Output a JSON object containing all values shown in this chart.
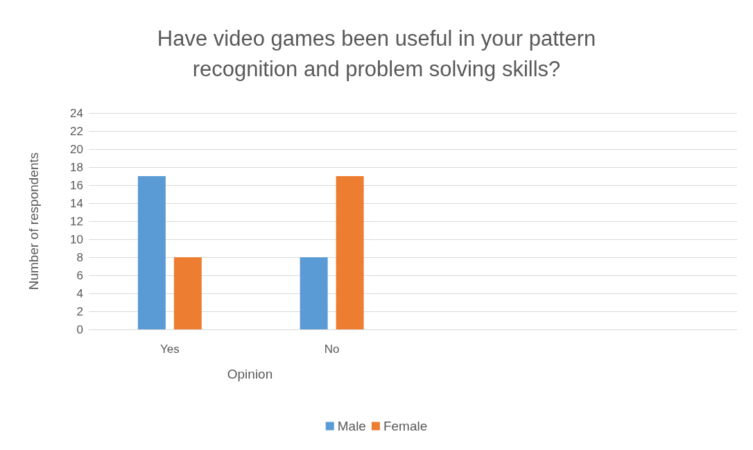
{
  "chart_data": {
    "type": "bar",
    "title": "Have video games been useful in your pattern\nrecognition and problem solving skills?",
    "xlabel": "Opinion",
    "ylabel": "Number of respondents",
    "categories": [
      "Yes",
      "No",
      null,
      null
    ],
    "series": [
      {
        "name": "Male",
        "color": "#5b9bd5",
        "values": [
          17,
          8,
          null,
          null
        ]
      },
      {
        "name": "Female",
        "color": "#ed7d31",
        "values": [
          8,
          17,
          null,
          null
        ]
      }
    ],
    "ylim": [
      0,
      24
    ],
    "yticks": [
      0,
      2,
      4,
      6,
      8,
      10,
      12,
      14,
      16,
      18,
      20,
      22,
      24
    ],
    "grid": "y",
    "legend": "bottom"
  }
}
